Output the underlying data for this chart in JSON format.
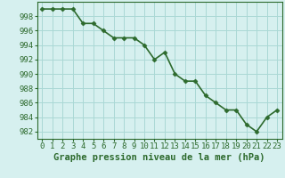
{
  "x": [
    0,
    1,
    2,
    3,
    4,
    5,
    6,
    7,
    8,
    9,
    10,
    11,
    12,
    13,
    14,
    15,
    16,
    17,
    18,
    19,
    20,
    21,
    22,
    23
  ],
  "y": [
    999,
    999,
    999,
    999,
    997,
    997,
    996,
    995,
    995,
    995,
    994,
    992,
    993,
    990,
    989,
    989,
    987,
    986,
    985,
    985,
    983,
    982,
    984,
    985
  ],
  "line_color": "#2d6a2d",
  "marker_color": "#2d6a2d",
  "bg_color": "#d6f0ef",
  "grid_color": "#aad8d5",
  "xlabel": "Graphe pression niveau de la mer (hPa)",
  "xlabel_fontsize": 7.5,
  "ylabel_ticks": [
    982,
    984,
    986,
    988,
    990,
    992,
    994,
    996,
    998
  ],
  "xlim": [
    -0.5,
    23.5
  ],
  "ylim": [
    981,
    1000
  ],
  "xtick_labels": [
    "0",
    "1",
    "2",
    "3",
    "4",
    "5",
    "6",
    "7",
    "8",
    "9",
    "10",
    "11",
    "12",
    "13",
    "14",
    "15",
    "16",
    "17",
    "18",
    "19",
    "20",
    "21",
    "22",
    "23"
  ],
  "tick_fontsize": 6.5,
  "line_width": 1.2,
  "marker_size": 2.5
}
